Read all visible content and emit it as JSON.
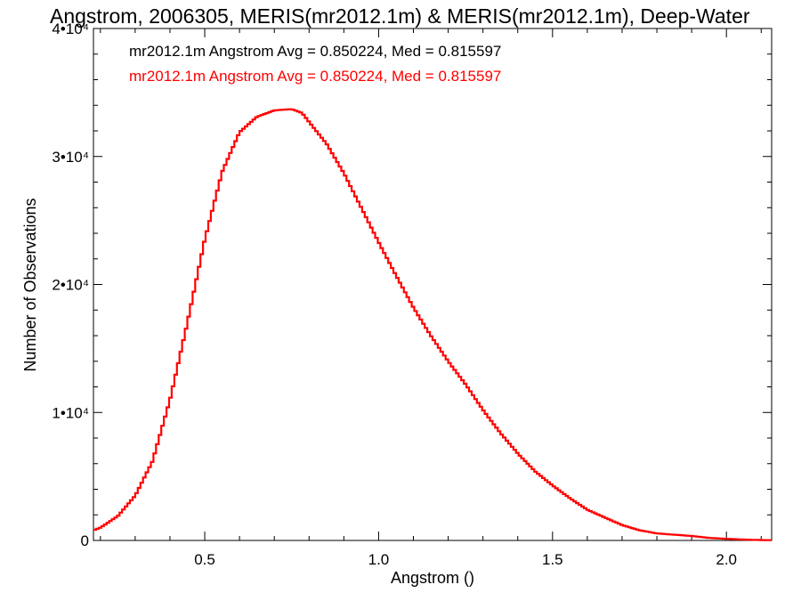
{
  "chart_data": {
    "type": "line",
    "title": "Angstrom, 2006305, MERIS(mr2012.1m) & MERIS(mr2012.1m), Deep-Water",
    "xlabel": "Angstrom ()",
    "ylabel": "Number of Observations",
    "xlim": [
      0.18,
      2.13
    ],
    "ylim": [
      0,
      40000
    ],
    "x_ticks": [
      {
        "value": 0.5,
        "label": "0.5"
      },
      {
        "value": 1.0,
        "label": "1.0"
      },
      {
        "value": 1.5,
        "label": "1.5"
      },
      {
        "value": 2.0,
        "label": "2.0"
      }
    ],
    "y_ticks": [
      {
        "value": 0,
        "label": "0"
      },
      {
        "value": 10000,
        "label": "1•10⁴"
      },
      {
        "value": 20000,
        "label": "2•10⁴"
      },
      {
        "value": 30000,
        "label": "3•10⁴"
      },
      {
        "value": 40000,
        "label": "4•10⁴"
      }
    ],
    "grid": false,
    "step_style": "histogram",
    "annotations": [
      {
        "text": "mr2012.1m Angstrom Avg = 0.850224, Med = 0.815597",
        "color": "#000000"
      },
      {
        "text": "mr2012.1m Angstrom Avg = 0.850224, Med = 0.815597",
        "color": "#ff0000"
      }
    ],
    "series": [
      {
        "color": "#ff0000",
        "x": [
          0.18,
          0.2,
          0.25,
          0.3,
          0.35,
          0.4,
          0.45,
          0.5,
          0.55,
          0.6,
          0.65,
          0.7,
          0.75,
          0.78,
          0.8,
          0.85,
          0.9,
          0.95,
          1.0,
          1.05,
          1.1,
          1.15,
          1.2,
          1.25,
          1.3,
          1.35,
          1.4,
          1.45,
          1.5,
          1.55,
          1.6,
          1.65,
          1.7,
          1.75,
          1.8,
          1.85,
          1.9,
          1.95,
          2.0,
          2.05,
          2.1,
          2.13
        ],
        "values": [
          800,
          1000,
          1900,
          3500,
          6200,
          11000,
          17000,
          23500,
          28800,
          31900,
          33100,
          33600,
          33700,
          33400,
          32700,
          31000,
          28700,
          26000,
          23300,
          20700,
          18200,
          16000,
          14000,
          12200,
          10200,
          8400,
          6800,
          5400,
          4300,
          3300,
          2400,
          1800,
          1200,
          800,
          550,
          450,
          350,
          200,
          130,
          70,
          30,
          20
        ]
      }
    ]
  }
}
